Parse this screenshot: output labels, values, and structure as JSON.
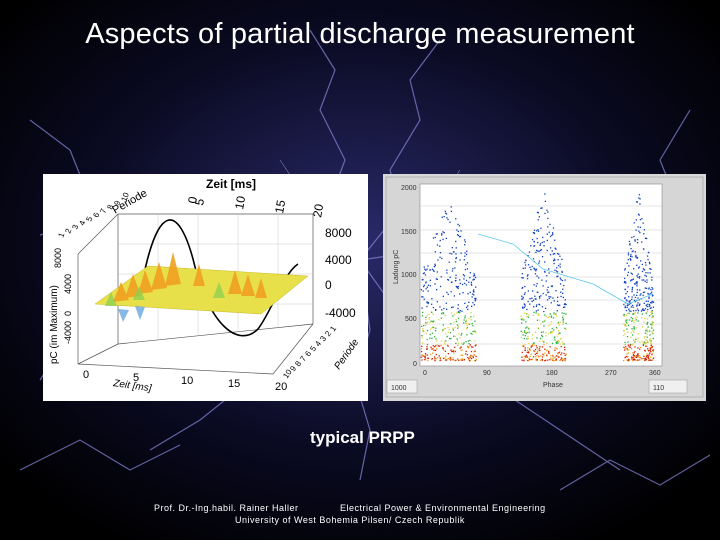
{
  "slide": {
    "title": "Aspects of partial discharge measurement",
    "caption": "typical PRPP",
    "footer": {
      "author": "Prof. Dr.-Ing.habil. Rainer Haller",
      "department": "Electrical Power & Environmental Engineering",
      "university": "University of West Bohemia Pilsen/ Czech Republik"
    }
  },
  "left_plot": {
    "top_axis_title": "Zeit [ms]",
    "top_ticks": [
      "0",
      "5",
      "10",
      "15",
      "20"
    ],
    "right_ticks": [
      "8000",
      "4000",
      "0",
      "-4000"
    ],
    "periode_label": "Periode",
    "periode_ticks": [
      "1",
      "2",
      "3",
      "4",
      "5",
      "6",
      "7",
      "8",
      "9",
      "10"
    ],
    "left_axis_title": "pC (im Maximum)",
    "left_ticks": [
      "8000",
      "4000",
      "0",
      "-4000"
    ],
    "bottom_axis_title": "Zeit [ms]",
    "bottom_ticks": [
      "0",
      "5",
      "10",
      "15",
      "20"
    ],
    "bottom_right_title": "Periode",
    "bottom_right_ticks": [
      "10",
      "9",
      "8",
      "7",
      "6",
      "5",
      "4",
      "3",
      "2",
      "1"
    ]
  },
  "right_plot": {
    "y_axis_label": "Ladung pC",
    "y_ticks": [
      "2000",
      "1500",
      "1000",
      "500",
      "0"
    ],
    "x_ticks": [
      "0",
      "90",
      "180",
      "270",
      "360"
    ],
    "x_axis_label": "Phase",
    "bottom_left_value": "1000",
    "bottom_right_value": "110"
  },
  "colors": {
    "surface": "#e8e04a",
    "peaks": "#f0a020",
    "sine": "#000000",
    "scatter_dense": "#d02000",
    "scatter_mid": "#20b040",
    "scatter_sparse": "#1040c0",
    "fit_line": "#60c8e8"
  }
}
